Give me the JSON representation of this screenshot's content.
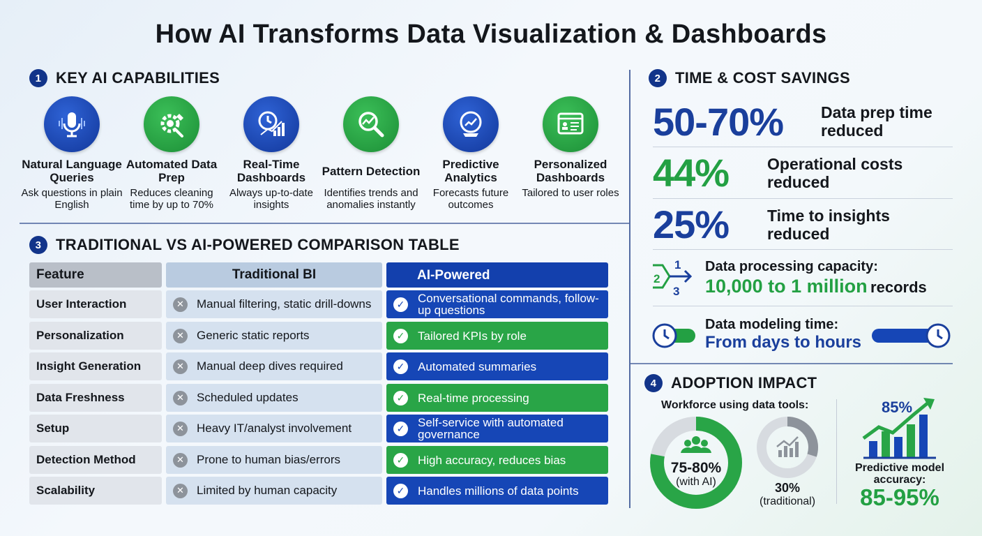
{
  "title": "How AI Transforms Data Visualization & Dashboards",
  "sections": {
    "capabilities": {
      "num": "1",
      "title": "KEY AI CAPABILITIES"
    },
    "savings": {
      "num": "2",
      "title": "TIME & COST SAVINGS"
    },
    "comparison": {
      "num": "3",
      "title": "TRADITIONAL VS AI-POWERED COMPARISON TABLE"
    },
    "adoption": {
      "num": "4",
      "title": "ADOPTION IMPACT"
    }
  },
  "capabilities": [
    {
      "title": "Natural Language Queries",
      "desc": "Ask questions in plain English",
      "icon": "microphone-icon",
      "color": "#1a3f9c"
    },
    {
      "title": "Automated Data Prep",
      "desc": "Reduces cleaning time by up to 70%",
      "icon": "gear-wrench-icon",
      "color": "#23a043"
    },
    {
      "title": "Real-Time Dashboards",
      "desc": "Always up-to-date insights",
      "icon": "clock-chart-icon",
      "color": "#1a3f9c"
    },
    {
      "title": "Pattern Detection",
      "desc": "Identifies trends and anomalies instantly",
      "icon": "magnifier-trend-icon",
      "color": "#23a043"
    },
    {
      "title": "Predictive Analytics",
      "desc": "Forecasts future outcomes",
      "icon": "crystal-ball-icon",
      "color": "#1a3f9c"
    },
    {
      "title": "Personalized Dashboards",
      "desc": "Tailored to user roles",
      "icon": "dashboard-window-icon",
      "color": "#23a043"
    }
  ],
  "comparison": {
    "headers": [
      "Feature",
      "Traditional BI",
      "AI-Powered"
    ],
    "rows": [
      {
        "feature": "User Interaction",
        "traditional": "Manual filtering, static drill-downs",
        "ai": "Conversational commands, follow-up questions",
        "ai_color": "blue"
      },
      {
        "feature": "Personalization",
        "traditional": "Generic static reports",
        "ai": "Tailored KPIs by role",
        "ai_color": "green"
      },
      {
        "feature": "Insight Generation",
        "traditional": "Manual deep dives required",
        "ai": "Automated summaries",
        "ai_color": "blue"
      },
      {
        "feature": "Data Freshness",
        "traditional": "Scheduled updates",
        "ai": "Real-time processing",
        "ai_color": "green"
      },
      {
        "feature": "Setup",
        "traditional": "Heavy IT/analyst involvement",
        "ai": "Self-service with automated governance",
        "ai_color": "blue"
      },
      {
        "feature": "Detection Method",
        "traditional": "Prone to human bias/errors",
        "ai": "High accuracy, reduces bias",
        "ai_color": "green"
      },
      {
        "feature": "Scalability",
        "traditional": "Limited by human capacity",
        "ai": "Handles millions of data points",
        "ai_color": "blue"
      }
    ]
  },
  "savings": {
    "stats": [
      {
        "value": "50-70%",
        "label_line1": "Data prep time",
        "label_line2": "reduced",
        "color": "#1a3f9c"
      },
      {
        "value": "44%",
        "label_line1": "Operational costs",
        "label_line2": "reduced",
        "color": "#23a043"
      },
      {
        "value": "25%",
        "label_line1": "Time to insights",
        "label_line2": "reduced",
        "color": "#1a3f9c"
      }
    ],
    "capacity": {
      "label": "Data processing capacity:",
      "value": "10,000 to 1 million",
      "suffix": "records",
      "icon": "scale-arrows-icon",
      "icon_nums": [
        "1",
        "2",
        "3"
      ]
    },
    "modeling": {
      "label": "Data modeling time:",
      "value": "From days to hours",
      "icon": "clock-icon"
    }
  },
  "adoption": {
    "workforce_label": "Workforce using data tools:",
    "with_ai": {
      "value": "75-80%",
      "label": "(with AI)",
      "fraction": 0.78,
      "icon": "people-group-icon"
    },
    "traditional": {
      "value": "30%",
      "label": "(traditional)",
      "fraction": 0.3,
      "icon": "bar-chart-icon"
    },
    "predictive": {
      "top_value": "85%",
      "label": "Predictive model accuracy:",
      "value": "85-95%",
      "icon": "rising-bars-icon"
    }
  },
  "colors": {
    "navy": "#12348a",
    "blue": "#1646b6",
    "green": "#29a547",
    "gray": "#8d939b"
  }
}
